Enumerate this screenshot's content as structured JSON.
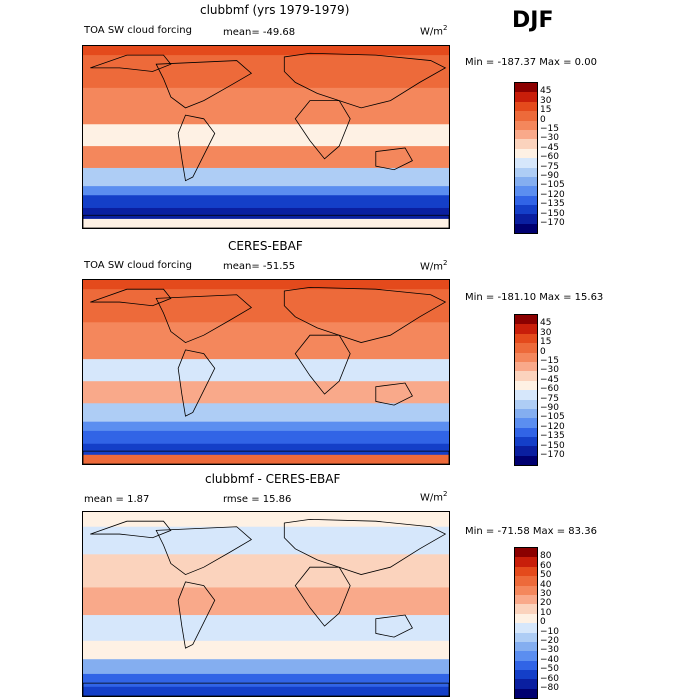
{
  "season": "DJF",
  "panels": [
    {
      "title": "clubbmf (yrs 1979-1979)",
      "left_label": "TOA SW cloud forcing",
      "mean_label": "mean= -49.68",
      "units": "W/m",
      "units_sup": "2",
      "minmax": "Min = -187.37 Max =   0.00",
      "levels": [
        "45",
        "30",
        "15",
        "0",
        "−15",
        "−30",
        "−45",
        "−60",
        "−75",
        "−90",
        "−105",
        "−120",
        "−135",
        "−150",
        "−170"
      ],
      "colors": [
        "#8b0000",
        "#c81e0a",
        "#e44a1c",
        "#ed6a3a",
        "#f4875c",
        "#f9a98a",
        "#fbd3bd",
        "#fef1e4",
        "#d6e7fb",
        "#aecdf5",
        "#84aef0",
        "#5b8ef0",
        "#3164e6",
        "#143fc8",
        "#0a1fa0",
        "#000070"
      ]
    },
    {
      "title": "CERES-EBAF",
      "left_label": "TOA SW cloud forcing",
      "mean_label": "mean= -51.55",
      "units": "W/m",
      "units_sup": "2",
      "minmax": "Min = -181.10 Max =  15.63",
      "levels": [
        "45",
        "30",
        "15",
        "0",
        "−15",
        "−30",
        "−45",
        "−60",
        "−75",
        "−90",
        "−105",
        "−120",
        "−135",
        "−150",
        "−170"
      ],
      "colors": [
        "#8b0000",
        "#c81e0a",
        "#e44a1c",
        "#ed6a3a",
        "#f4875c",
        "#f9a98a",
        "#fbd3bd",
        "#fef1e4",
        "#d6e7fb",
        "#aecdf5",
        "#84aef0",
        "#5b8ef0",
        "#3164e6",
        "#143fc8",
        "#0a1fa0",
        "#000070"
      ]
    },
    {
      "title": "clubbmf - CERES-EBAF",
      "left_label": "mean =    1.87",
      "mean_label": "rmse =   15.86",
      "units": "W/m",
      "units_sup": "2",
      "minmax": "Min = -71.58 Max =  83.36",
      "levels": [
        "80",
        "60",
        "50",
        "40",
        "30",
        "20",
        "10",
        "0",
        "−10",
        "−20",
        "−30",
        "−40",
        "−50",
        "−60",
        "−80"
      ],
      "colors": [
        "#8b0000",
        "#c81e0a",
        "#e44a1c",
        "#ed6a3a",
        "#f4875c",
        "#f9a98a",
        "#fbd3bd",
        "#fef1e4",
        "#d6e7fb",
        "#aecdf5",
        "#84aef0",
        "#5b8ef0",
        "#3164e6",
        "#143fc8",
        "#0a1fa0",
        "#000070"
      ]
    }
  ],
  "chart_data": [
    {
      "type": "heatmap",
      "title": "clubbmf (yrs 1979-1979)",
      "variable": "TOA SW cloud forcing",
      "units": "W/m2",
      "season": "DJF",
      "mean": -49.68,
      "min": -187.37,
      "max": 0.0,
      "colorbar_levels": [
        45,
        30,
        15,
        0,
        -15,
        -30,
        -45,
        -60,
        -75,
        -90,
        -105,
        -120,
        -135,
        -150,
        -170
      ]
    },
    {
      "type": "heatmap",
      "title": "CERES-EBAF",
      "variable": "TOA SW cloud forcing",
      "units": "W/m2",
      "season": "DJF",
      "mean": -51.55,
      "min": -181.1,
      "max": 15.63,
      "colorbar_levels": [
        45,
        30,
        15,
        0,
        -15,
        -30,
        -45,
        -60,
        -75,
        -90,
        -105,
        -120,
        -135,
        -150,
        -170
      ]
    },
    {
      "type": "heatmap",
      "title": "clubbmf - CERES-EBAF",
      "units": "W/m2",
      "mean": 1.87,
      "rmse": 15.86,
      "min": -71.58,
      "max": 83.36,
      "colorbar_levels": [
        80,
        60,
        50,
        40,
        30,
        20,
        10,
        0,
        -10,
        -20,
        -30,
        -40,
        -50,
        -60,
        -80
      ]
    }
  ]
}
